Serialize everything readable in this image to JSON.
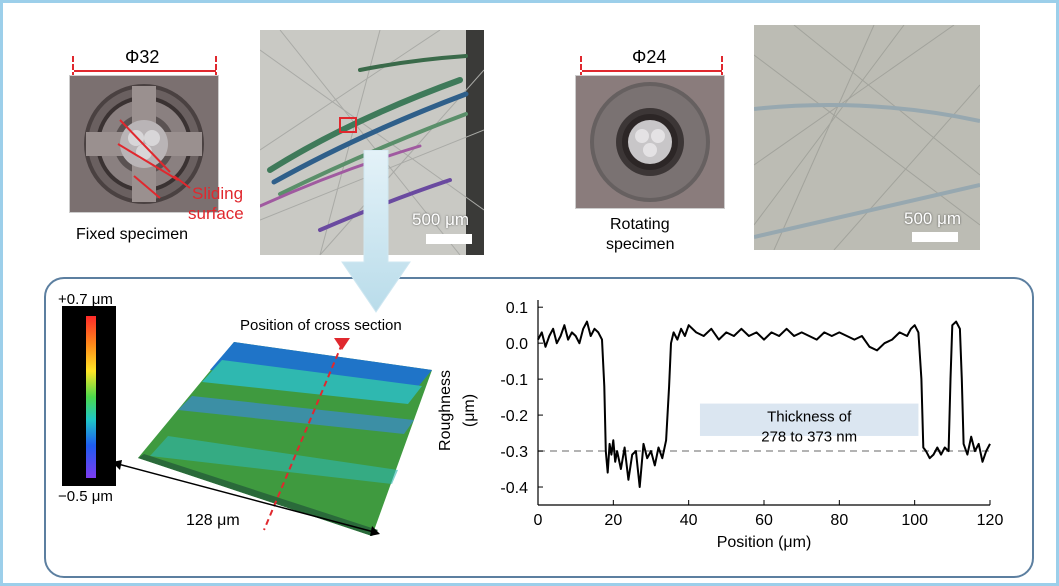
{
  "fixed_specimen": {
    "diameter_label": "Φ32",
    "sliding_label_line1": "Sliding",
    "sliding_label_line2": "surface",
    "caption": "Fixed specimen",
    "micrograph_scale": "500 μm"
  },
  "rotating_specimen": {
    "diameter_label": "Φ24",
    "caption_line1": "Rotating",
    "caption_line2": "specimen",
    "micrograph_scale": "500 μm"
  },
  "surface_map": {
    "colorbar_top": "+0.7 μm",
    "colorbar_bottom": "−0.5 μm",
    "cross_section_label": "Position of cross section",
    "width_label": "128 μm"
  },
  "colors": {
    "frame_border": "#9ccfea",
    "panel_border": "#5c7fa0",
    "accent_red": "#e0282e",
    "annotation_box": "#dbe6f1"
  },
  "chart_data": {
    "type": "line",
    "title": "",
    "xlabel": "Position (μm)",
    "ylabel": "Roughness (μm)",
    "xlim": [
      0,
      120
    ],
    "ylim": [
      -0.45,
      0.12
    ],
    "x_ticks": [
      0,
      20,
      40,
      60,
      80,
      100,
      120
    ],
    "y_ticks": [
      0.1,
      0.0,
      -0.1,
      -0.2,
      -0.3,
      -0.4
    ],
    "grid": false,
    "reference_line_y": -0.3,
    "annotation": "Thickness of 278 to 373 nm",
    "series": [
      {
        "x": [
          0,
          1,
          2,
          3,
          4,
          5,
          6,
          7,
          8,
          9,
          10,
          11,
          12,
          13,
          14,
          15,
          16,
          17,
          17.6,
          18,
          18.5,
          19,
          19.5,
          20,
          20.5,
          21,
          22,
          23,
          24,
          25,
          26,
          27,
          28,
          29,
          30,
          31,
          32,
          33,
          34,
          34.8,
          35.3,
          36,
          37,
          38,
          39,
          40,
          42,
          44,
          46,
          48,
          50,
          52,
          54,
          56,
          58,
          60,
          62,
          64,
          66,
          68,
          70,
          72,
          74,
          76,
          78,
          80,
          82,
          84,
          86,
          88,
          90,
          92,
          94,
          96,
          98,
          99,
          100,
          101,
          101.8,
          102.3,
          103,
          104,
          105,
          106,
          107,
          108,
          109,
          109.5,
          110,
          111,
          112,
          112.5,
          113,
          114,
          115,
          116,
          117,
          118,
          119,
          120
        ],
        "y": [
          0.01,
          0.03,
          -0.01,
          0.02,
          0.04,
          0.0,
          0.02,
          0.05,
          0.01,
          0.03,
          0.02,
          0.0,
          0.04,
          0.06,
          0.02,
          0.04,
          0.03,
          0.01,
          -0.12,
          -0.3,
          -0.36,
          -0.28,
          -0.31,
          -0.27,
          -0.33,
          -0.3,
          -0.35,
          -0.29,
          -0.38,
          -0.31,
          -0.3,
          -0.4,
          -0.28,
          -0.32,
          -0.3,
          -0.34,
          -0.29,
          -0.32,
          -0.27,
          -0.12,
          0.0,
          0.03,
          0.01,
          0.04,
          0.02,
          0.05,
          0.03,
          0.02,
          0.04,
          0.01,
          0.03,
          0.02,
          0.04,
          0.02,
          0.03,
          0.01,
          0.03,
          0.02,
          0.04,
          0.02,
          0.03,
          0.02,
          0.01,
          0.03,
          0.02,
          0.03,
          0.02,
          0.01,
          0.02,
          -0.01,
          -0.02,
          0.0,
          0.01,
          0.03,
          0.02,
          0.04,
          0.05,
          0.03,
          -0.1,
          -0.29,
          -0.3,
          -0.32,
          -0.31,
          -0.29,
          -0.31,
          -0.29,
          -0.3,
          -0.1,
          0.05,
          0.06,
          0.04,
          -0.1,
          -0.28,
          -0.31,
          -0.26,
          -0.3,
          -0.28,
          -0.33,
          -0.3,
          -0.28
        ]
      }
    ]
  }
}
